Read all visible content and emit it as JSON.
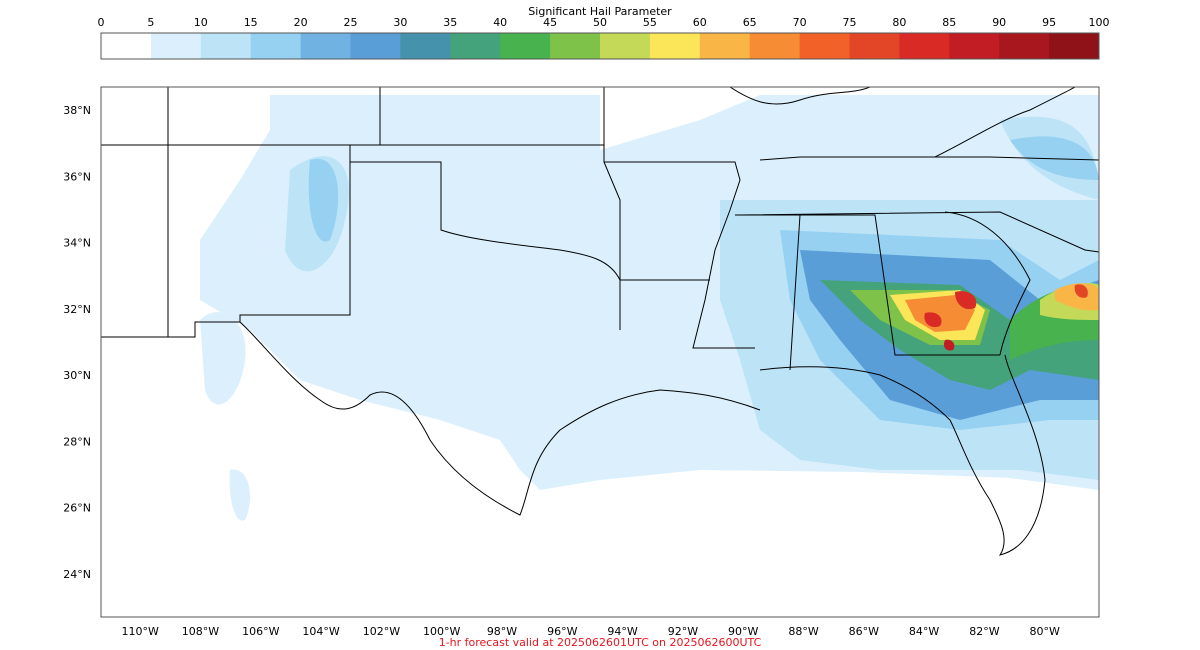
{
  "colorbar": {
    "title": "Significant Hail Parameter",
    "ticks": [
      "0",
      "5",
      "10",
      "15",
      "20",
      "25",
      "30",
      "35",
      "40",
      "45",
      "50",
      "55",
      "60",
      "65",
      "70",
      "75",
      "80",
      "85",
      "90",
      "95",
      "100"
    ],
    "colors": [
      "#ffffff",
      "#dbf0fc",
      "#bde3f7",
      "#96d1f2",
      "#70b3e2",
      "#5a9ed8",
      "#4592ad",
      "#44a37a",
      "#48b24e",
      "#7fc24a",
      "#c4d958",
      "#fbe65a",
      "#f9b646",
      "#f68d35",
      "#f26128",
      "#e34627",
      "#d92a26",
      "#c21d25",
      "#a8171e",
      "#8e1217"
    ]
  },
  "map": {
    "lat_labels": [
      "38°N",
      "36°N",
      "34°N",
      "32°N",
      "30°N",
      "28°N",
      "26°N",
      "24°N"
    ],
    "lon_labels": [
      "110°W",
      "108°W",
      "106°W",
      "104°W",
      "102°W",
      "100°W",
      "98°W",
      "96°W",
      "94°W",
      "92°W",
      "90°W",
      "88°W",
      "86°W",
      "84°W",
      "82°W",
      "80°W"
    ],
    "lat_values": [
      38,
      36,
      34,
      32,
      30,
      28,
      26,
      24
    ],
    "lon_values": [
      -110,
      -108,
      -106,
      -104,
      -102,
      -100,
      -98,
      -96,
      -94,
      -92,
      -90,
      -88,
      -86,
      -84,
      -82,
      -80
    ],
    "extent": {
      "lon_min": -111.3,
      "lon_max": -78.2,
      "lat_min": 22.7,
      "lat_max": 38.7
    }
  },
  "caption": "1-hr forecast valid at 2025062601UTC on 2025062600UTC"
}
